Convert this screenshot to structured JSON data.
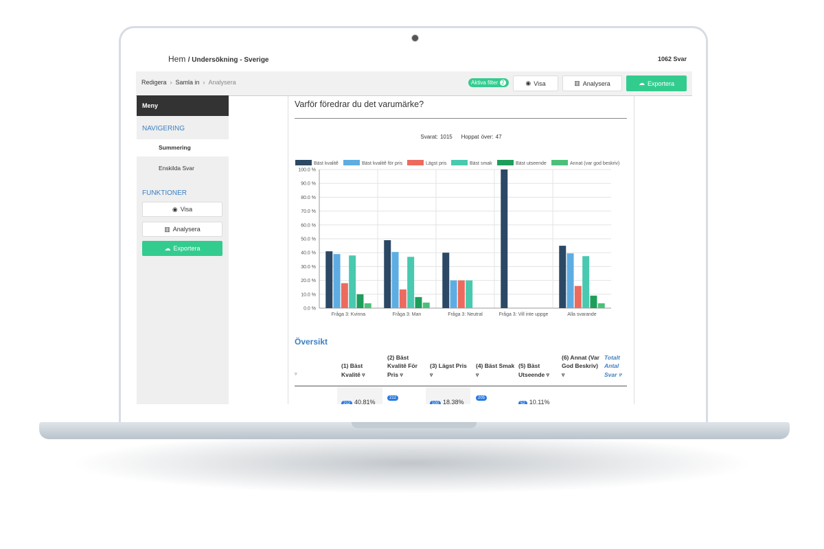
{
  "header": {
    "home": "Hem",
    "breadcrumb": "/ Undersökning - Sverige",
    "responses": "1062 Svar"
  },
  "toolbar": {
    "steps": [
      "Redigera",
      "Samla in",
      "Analysera"
    ],
    "filter": "Aktiva filter",
    "filter_count": "2",
    "buttons": [
      "Visa",
      "Analysera",
      "Exportera"
    ]
  },
  "sidebar": {
    "menu": "Meny",
    "nav_heading": "NAVIGERING",
    "nav_items": [
      "Summering",
      "Enskilda Svar"
    ],
    "func_heading": "FUNKTIONER",
    "func_buttons": [
      "Visa",
      "Analysera",
      "Exportera"
    ]
  },
  "question": {
    "title": "Varför föredrar du det varumärke?",
    "answered": "Svarat: 1015",
    "skipped": "Hoppat över: 47"
  },
  "chart_data": {
    "type": "bar",
    "categories": [
      "Fråga 3: Kvinna",
      "Fråga 3: Man",
      "Fråga 3: Neutral",
      "Fråga 3: Vill inte uppge",
      "Alla svarande"
    ],
    "series": [
      {
        "name": "Bäst kvalitê",
        "color": "#2b4865",
        "values": [
          41,
          49,
          40,
          100,
          45
        ]
      },
      {
        "name": "Bäst kvalitê för pris",
        "color": "#5dade2",
        "values": [
          39,
          40.5,
          20,
          0,
          39.5
        ]
      },
      {
        "name": "Lägst pris",
        "color": "#ec6b5e",
        "values": [
          18,
          13.5,
          20,
          0,
          16
        ]
      },
      {
        "name": "Bäst smak",
        "color": "#48c9b0",
        "values": [
          38,
          37,
          20,
          0,
          37.5
        ]
      },
      {
        "name": "Bäst utseende",
        "color": "#1e9e5a",
        "values": [
          10,
          8,
          0,
          0,
          9
        ]
      },
      {
        "name": "Annat (var god beskriv)",
        "color": "#4cc07a",
        "values": [
          3.5,
          4,
          0,
          0,
          3.5
        ]
      }
    ],
    "ylim": [
      0,
      100
    ],
    "yticks": [
      {
        "value": 0,
        "label": "0.0 %"
      },
      {
        "value": 10,
        "label": "10.0 %"
      },
      {
        "value": 20,
        "label": "20.0 %"
      },
      {
        "value": 30,
        "label": "30.0 %"
      },
      {
        "value": 40,
        "label": "40.0 %"
      },
      {
        "value": 50,
        "label": "50.0 %"
      },
      {
        "value": 60,
        "label": "60.0 %"
      },
      {
        "value": 70,
        "label": "70.0 %"
      },
      {
        "value": 80,
        "label": "80.0 %"
      },
      {
        "value": 90,
        "label": "90.0 %"
      },
      {
        "value": 100,
        "label": "100.0 %"
      }
    ],
    "grid": true
  },
  "overview": {
    "title": "Översikt",
    "columns": [
      "(1) Bäst Kvalitê",
      "(2) Bäst Kvalitê För Pris",
      "(3) Lägst Pris",
      "(4) Bäst Smak",
      "(5) Bäst Utseende",
      "(6) Annat (Var God Beskriv)",
      "Totalt Antal Svar"
    ],
    "row": [
      {
        "count": "212",
        "percent": "40.81%"
      },
      {
        "count": "212"
      },
      {
        "count": "100",
        "percent": "18.38%"
      },
      {
        "count": "205"
      },
      {
        "count": "52",
        "percent": "10.11%"
      }
    ]
  }
}
